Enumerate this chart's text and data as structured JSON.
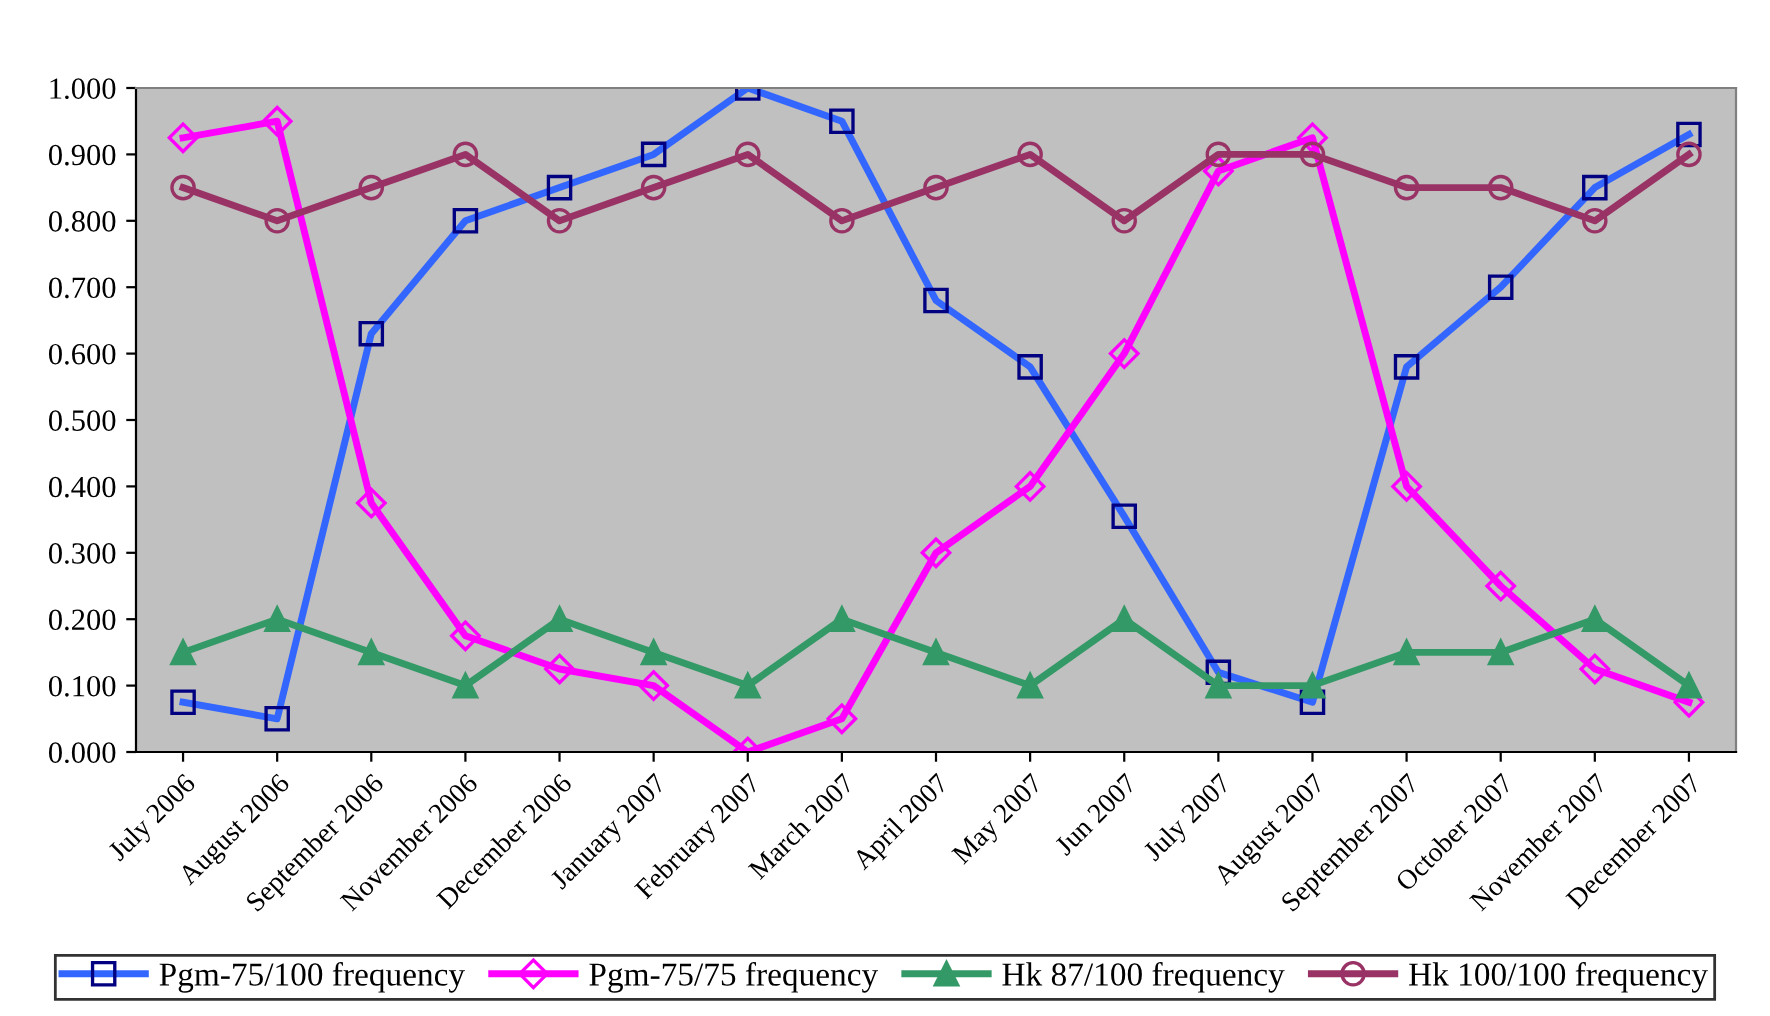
{
  "chart_data": {
    "type": "line",
    "categories": [
      "July 2006",
      "August 2006",
      "September 2006",
      "November 2006",
      "December 2006",
      "January 2007",
      "February 2007",
      "March 2007",
      "April 2007",
      "May 2007",
      "Jun 2007",
      "July 2007",
      "August 2007",
      "September 2007",
      "October 2007",
      "November 2007",
      "December 2007"
    ],
    "series": [
      {
        "name": "Pgm-75/100 frequency",
        "color": "#3366ff",
        "marker": "square",
        "values": [
          0.075,
          0.05,
          0.63,
          0.8,
          0.85,
          0.9,
          1.0,
          0.95,
          0.68,
          0.58,
          0.355,
          0.12,
          0.075,
          0.58,
          0.7,
          0.85,
          0.93
        ]
      },
      {
        "name": "Pgm-75/75 frequency",
        "color": "#ff00ff",
        "marker": "diamond",
        "values": [
          0.925,
          0.95,
          0.375,
          0.175,
          0.125,
          0.1,
          0.0,
          0.05,
          0.3,
          0.4,
          0.6,
          0.875,
          0.925,
          0.4,
          0.25,
          0.125,
          0.075
        ]
      },
      {
        "name": "Hk 87/100 frequency",
        "color": "#339966",
        "marker": "triangle",
        "values": [
          0.15,
          0.2,
          0.15,
          0.1,
          0.2,
          0.15,
          0.1,
          0.2,
          0.15,
          0.1,
          0.2,
          0.1,
          0.1,
          0.15,
          0.15,
          0.2,
          0.1
        ]
      },
      {
        "name": "Hk 100/100 frequency",
        "color": "#993366",
        "marker": "circle",
        "values": [
          0.85,
          0.8,
          0.85,
          0.9,
          0.8,
          0.85,
          0.9,
          0.8,
          0.85,
          0.9,
          0.8,
          0.9,
          0.9,
          0.85,
          0.85,
          0.8,
          0.9
        ]
      }
    ],
    "ylim": [
      0,
      1.0
    ],
    "yticks": [
      {
        "value": 0,
        "label": "0.000"
      },
      {
        "value": 0.1,
        "label": "0.100"
      },
      {
        "value": 0.2,
        "label": "0.200"
      },
      {
        "value": 0.3,
        "label": "0.300"
      },
      {
        "value": 0.4,
        "label": "0.400"
      },
      {
        "value": 0.5,
        "label": "0.500"
      },
      {
        "value": 0.6,
        "label": "0.600"
      },
      {
        "value": 0.7,
        "label": "0.700"
      },
      {
        "value": 0.8,
        "label": "0.800"
      },
      {
        "value": 0.9,
        "label": "0.900"
      },
      {
        "value": 1.0,
        "label": "1.000"
      }
    ],
    "grid": false,
    "legend": "bottom",
    "line_style": "solid"
  }
}
